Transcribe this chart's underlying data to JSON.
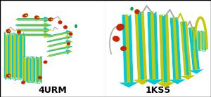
{
  "label_left": "4URM",
  "label_right": "1KS5",
  "label_fontsize": 9,
  "label_fontweight": "bold",
  "bg_color": "#ffffff",
  "border_color": "#000000",
  "colors": {
    "cyan": "#00c8d4",
    "yellow": "#c8c800",
    "olive": "#a0a000",
    "red": "#cc2200",
    "darkred": "#aa0000",
    "green": "#00aa44",
    "white": "#ffffff",
    "gray": "#aaaaaa",
    "lightgray": "#cccccc",
    "bg_left": "#e8f4f8",
    "bg_right": "#f0f8e8"
  }
}
